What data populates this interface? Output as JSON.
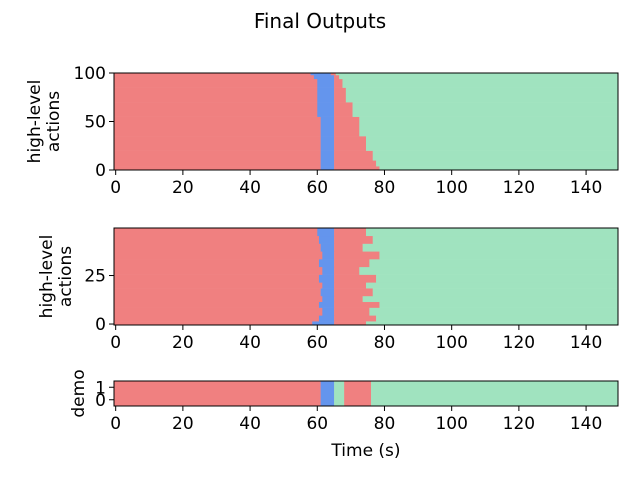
{
  "figure": {
    "title": "Final Outputs",
    "xlabel": "Time (s)"
  },
  "colors": {
    "red": "#f08080",
    "blue": "#6495ed",
    "green": "#a0e3bf",
    "axis": "#000000"
  },
  "chart_data": [
    {
      "type": "heatmap",
      "panel": "top",
      "ylabel": [
        "high-level",
        "actions"
      ],
      "xlim": [
        -0.5,
        149.5
      ],
      "ylim": [
        0,
        100
      ],
      "xticks": [
        0,
        20,
        40,
        60,
        80,
        100,
        120,
        140
      ],
      "yticks": [
        0,
        50,
        100
      ],
      "rows": 100,
      "row_segments": [
        {
          "rows": [
            0,
            4
          ],
          "segments": [
            {
              "label": "red",
              "start": 0,
              "end": 61.5
            },
            {
              "label": "blue",
              "start": 61.5,
              "end": 65.5
            },
            {
              "label": "red",
              "start": 65.5,
              "end": 79
            },
            {
              "label": "green",
              "start": 79,
              "end": 150
            }
          ]
        },
        {
          "rows": [
            4,
            10
          ],
          "segments": [
            {
              "label": "red",
              "start": 0,
              "end": 61.5
            },
            {
              "label": "blue",
              "start": 61.5,
              "end": 65.5
            },
            {
              "label": "red",
              "start": 65.5,
              "end": 78
            },
            {
              "label": "green",
              "start": 78,
              "end": 150
            }
          ]
        },
        {
          "rows": [
            10,
            20
          ],
          "segments": [
            {
              "label": "red",
              "start": 0,
              "end": 61.5
            },
            {
              "label": "blue",
              "start": 61.5,
              "end": 65.5
            },
            {
              "label": "red",
              "start": 65.5,
              "end": 77
            },
            {
              "label": "green",
              "start": 77,
              "end": 150
            }
          ]
        },
        {
          "rows": [
            20,
            35
          ],
          "segments": [
            {
              "label": "red",
              "start": 0,
              "end": 61.5
            },
            {
              "label": "blue",
              "start": 61.5,
              "end": 65.5
            },
            {
              "label": "red",
              "start": 65.5,
              "end": 75
            },
            {
              "label": "green",
              "start": 75,
              "end": 150
            }
          ]
        },
        {
          "rows": [
            35,
            55
          ],
          "segments": [
            {
              "label": "red",
              "start": 0,
              "end": 61.5
            },
            {
              "label": "blue",
              "start": 61.5,
              "end": 65.5
            },
            {
              "label": "red",
              "start": 65.5,
              "end": 73
            },
            {
              "label": "green",
              "start": 73,
              "end": 150
            }
          ]
        },
        {
          "rows": [
            55,
            70
          ],
          "segments": [
            {
              "label": "red",
              "start": 0,
              "end": 60.5
            },
            {
              "label": "blue",
              "start": 60.5,
              "end": 65.5
            },
            {
              "label": "red",
              "start": 65.5,
              "end": 71
            },
            {
              "label": "green",
              "start": 71,
              "end": 150
            }
          ]
        },
        {
          "rows": [
            70,
            85
          ],
          "segments": [
            {
              "label": "red",
              "start": 0,
              "end": 60.5
            },
            {
              "label": "blue",
              "start": 60.5,
              "end": 65.5
            },
            {
              "label": "red",
              "start": 65.5,
              "end": 69
            },
            {
              "label": "green",
              "start": 69,
              "end": 150
            }
          ]
        },
        {
          "rows": [
            85,
            94
          ],
          "segments": [
            {
              "label": "red",
              "start": 0,
              "end": 60.5
            },
            {
              "label": "blue",
              "start": 60.5,
              "end": 65.5
            },
            {
              "label": "red",
              "start": 65.5,
              "end": 68
            },
            {
              "label": "green",
              "start": 68,
              "end": 150
            }
          ]
        },
        {
          "rows": [
            94,
            98
          ],
          "segments": [
            {
              "label": "red",
              "start": 0,
              "end": 59.5
            },
            {
              "label": "blue",
              "start": 59.5,
              "end": 65.5
            },
            {
              "label": "red",
              "start": 65.5,
              "end": 67
            },
            {
              "label": "green",
              "start": 67,
              "end": 150
            }
          ]
        },
        {
          "rows": [
            98,
            100
          ],
          "segments": [
            {
              "label": "red",
              "start": 0,
              "end": 58.5
            },
            {
              "label": "blue",
              "start": 58.5,
              "end": 64.5
            },
            {
              "label": "red",
              "start": 64.5,
              "end": 66
            },
            {
              "label": "green",
              "start": 66,
              "end": 150
            }
          ]
        }
      ]
    },
    {
      "type": "heatmap",
      "panel": "middle",
      "ylabel": [
        "high-level",
        "actions"
      ],
      "xlim": [
        -0.5,
        149.5
      ],
      "ylim": [
        -0.5,
        49.5
      ],
      "xticks": [
        0,
        20,
        40,
        60,
        80,
        100,
        120,
        140
      ],
      "yticks": [
        0,
        25
      ],
      "rows": 50,
      "row_segments": [
        {
          "rows": [
            0,
            2
          ],
          "segments": [
            {
              "label": "red",
              "start": 0,
              "end": 59
            },
            {
              "label": "blue",
              "start": 59,
              "end": 65.5
            },
            {
              "label": "red",
              "start": 65.5,
              "end": 75
            },
            {
              "label": "green",
              "start": 75,
              "end": 150
            }
          ]
        },
        {
          "rows": [
            2,
            5
          ],
          "segments": [
            {
              "label": "red",
              "start": 0,
              "end": 61
            },
            {
              "label": "blue",
              "start": 61,
              "end": 65.5
            },
            {
              "label": "red",
              "start": 65.5,
              "end": 78
            },
            {
              "label": "green",
              "start": 78,
              "end": 150
            }
          ]
        },
        {
          "rows": [
            5,
            9
          ],
          "segments": [
            {
              "label": "red",
              "start": 0,
              "end": 62
            },
            {
              "label": "blue",
              "start": 62,
              "end": 65.5
            },
            {
              "label": "red",
              "start": 65.5,
              "end": 76
            },
            {
              "label": "green",
              "start": 76,
              "end": 150
            }
          ]
        },
        {
          "rows": [
            9,
            12
          ],
          "segments": [
            {
              "label": "red",
              "start": 0,
              "end": 61
            },
            {
              "label": "blue",
              "start": 61,
              "end": 65.5
            },
            {
              "label": "red",
              "start": 65.5,
              "end": 79
            },
            {
              "label": "green",
              "start": 79,
              "end": 150
            }
          ]
        },
        {
          "rows": [
            12,
            15
          ],
          "segments": [
            {
              "label": "red",
              "start": 0,
              "end": 62
            },
            {
              "label": "blue",
              "start": 62,
              "end": 65.5
            },
            {
              "label": "red",
              "start": 65.5,
              "end": 74
            },
            {
              "label": "green",
              "start": 74,
              "end": 150
            }
          ]
        },
        {
          "rows": [
            15,
            19
          ],
          "segments": [
            {
              "label": "red",
              "start": 0,
              "end": 61.5
            },
            {
              "label": "blue",
              "start": 61.5,
              "end": 65.5
            },
            {
              "label": "red",
              "start": 65.5,
              "end": 77
            },
            {
              "label": "green",
              "start": 77,
              "end": 150
            }
          ]
        },
        {
          "rows": [
            19,
            22
          ],
          "segments": [
            {
              "label": "red",
              "start": 0,
              "end": 62
            },
            {
              "label": "blue",
              "start": 62,
              "end": 65.5
            },
            {
              "label": "red",
              "start": 65.5,
              "end": 75
            },
            {
              "label": "green",
              "start": 75,
              "end": 150
            }
          ]
        },
        {
          "rows": [
            22,
            26
          ],
          "segments": [
            {
              "label": "red",
              "start": 0,
              "end": 61
            },
            {
              "label": "blue",
              "start": 61,
              "end": 65.5
            },
            {
              "label": "red",
              "start": 65.5,
              "end": 78
            },
            {
              "label": "green",
              "start": 78,
              "end": 150
            }
          ]
        },
        {
          "rows": [
            26,
            30
          ],
          "segments": [
            {
              "label": "red",
              "start": 0,
              "end": 62
            },
            {
              "label": "blue",
              "start": 62,
              "end": 65.5
            },
            {
              "label": "red",
              "start": 65.5,
              "end": 73
            },
            {
              "label": "green",
              "start": 73,
              "end": 150
            }
          ]
        },
        {
          "rows": [
            30,
            34
          ],
          "segments": [
            {
              "label": "red",
              "start": 0,
              "end": 61
            },
            {
              "label": "blue",
              "start": 61,
              "end": 65.5
            },
            {
              "label": "red",
              "start": 65.5,
              "end": 76
            },
            {
              "label": "green",
              "start": 76,
              "end": 150
            }
          ]
        },
        {
          "rows": [
            34,
            38
          ],
          "segments": [
            {
              "label": "red",
              "start": 0,
              "end": 62
            },
            {
              "label": "blue",
              "start": 62,
              "end": 65.5
            },
            {
              "label": "red",
              "start": 65.5,
              "end": 79
            },
            {
              "label": "green",
              "start": 79,
              "end": 150
            }
          ]
        },
        {
          "rows": [
            38,
            42
          ],
          "segments": [
            {
              "label": "red",
              "start": 0,
              "end": 61.5
            },
            {
              "label": "blue",
              "start": 61.5,
              "end": 65.5
            },
            {
              "label": "red",
              "start": 65.5,
              "end": 74
            },
            {
              "label": "green",
              "start": 74,
              "end": 150
            }
          ]
        },
        {
          "rows": [
            42,
            46
          ],
          "segments": [
            {
              "label": "red",
              "start": 0,
              "end": 61
            },
            {
              "label": "blue",
              "start": 61,
              "end": 65.5
            },
            {
              "label": "red",
              "start": 65.5,
              "end": 77
            },
            {
              "label": "green",
              "start": 77,
              "end": 150
            }
          ]
        },
        {
          "rows": [
            46,
            50
          ],
          "segments": [
            {
              "label": "red",
              "start": 0,
              "end": 60.5
            },
            {
              "label": "blue",
              "start": 60.5,
              "end": 65.5
            },
            {
              "label": "red",
              "start": 65.5,
              "end": 75
            },
            {
              "label": "green",
              "start": 75,
              "end": 150
            }
          ]
        }
      ]
    },
    {
      "type": "heatmap",
      "panel": "bottom",
      "ylabel": [
        "demo"
      ],
      "xlabel": "Time (s)",
      "xlim": [
        -0.5,
        149.5
      ],
      "ylim": [
        -0.5,
        1.5
      ],
      "xticks": [
        0,
        20,
        40,
        60,
        80,
        100,
        120,
        140
      ],
      "yticks": [
        0,
        1
      ],
      "rows": 2,
      "row_segments": [
        {
          "rows": [
            0,
            2
          ],
          "segments": [
            {
              "label": "red",
              "start": 0,
              "end": 61.5
            },
            {
              "label": "blue",
              "start": 61.5,
              "end": 65.5
            },
            {
              "label": "green",
              "start": 65.5,
              "end": 68.5
            },
            {
              "label": "red",
              "start": 68.5,
              "end": 76.5
            },
            {
              "label": "green",
              "start": 76.5,
              "end": 150
            }
          ]
        }
      ]
    }
  ]
}
